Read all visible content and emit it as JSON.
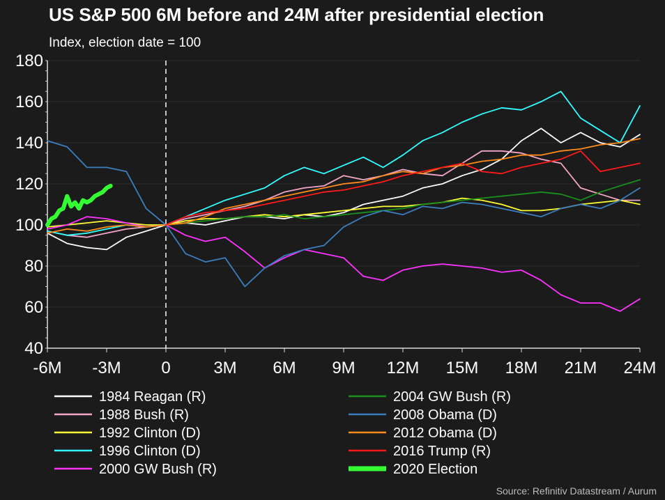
{
  "title": "US S&P 500 6M before and 24M after presidential election",
  "subtitle": "Index, election date = 100",
  "source": "Source: Refinitiv Datastream / Aurum",
  "chart_data": {
    "type": "line",
    "title": "US S&P 500 6M before and 24M after presidential election",
    "subtitle": "Index, election date = 100",
    "xlim": [
      -6,
      24
    ],
    "ylim": [
      40,
      180
    ],
    "x_ticks": [
      -6,
      -3,
      0,
      3,
      6,
      9,
      12,
      15,
      18,
      21,
      24
    ],
    "x_tick_labels": [
      "-6M",
      "-3M",
      "0",
      "3M",
      "6M",
      "9M",
      "12M",
      "15M",
      "18M",
      "21M",
      "24M"
    ],
    "y_ticks": [
      40,
      60,
      80,
      100,
      120,
      140,
      160,
      180
    ],
    "y_tick_labels": [
      "40",
      "60",
      "80",
      "100",
      "120",
      "140",
      "160",
      "180"
    ],
    "grid": true,
    "vline_at": 0,
    "legend_position": "bottom",
    "series": [
      {
        "name": "1984 Reagan (R)",
        "color": "#ffffff",
        "x": [
          -6,
          -5,
          -4,
          -3,
          -2,
          -1,
          0,
          1,
          2,
          3,
          4,
          5,
          6,
          7,
          8,
          9,
          10,
          11,
          12,
          13,
          14,
          15,
          16,
          17,
          18,
          19,
          20,
          21,
          22,
          23,
          24
        ],
        "values": [
          96,
          91,
          89,
          88,
          94,
          97,
          100,
          101,
          100,
          102,
          104,
          104,
          103,
          105,
          104,
          106,
          110,
          112,
          114,
          118,
          120,
          124,
          127,
          132,
          141,
          147,
          140,
          145,
          140,
          138,
          144
        ]
      },
      {
        "name": "1988 Bush (R)",
        "color": "#f4a6c8",
        "x": [
          -6,
          -5,
          -4,
          -3,
          -2,
          -1,
          0,
          1,
          2,
          3,
          4,
          5,
          6,
          7,
          8,
          9,
          10,
          11,
          12,
          13,
          14,
          15,
          16,
          17,
          18,
          19,
          20,
          21,
          22,
          23,
          24
        ],
        "values": [
          97,
          95,
          94,
          96,
          98,
          99,
          100,
          103,
          105,
          107,
          109,
          112,
          116,
          118,
          119,
          124,
          122,
          124,
          127,
          125,
          124,
          130,
          136,
          136,
          135,
          132,
          130,
          118,
          115,
          112,
          112
        ]
      },
      {
        "name": "1992 Clinton (D)",
        "color": "#ffff33",
        "x": [
          -6,
          -5,
          -4,
          -3,
          -2,
          -1,
          0,
          1,
          2,
          3,
          4,
          5,
          6,
          7,
          8,
          9,
          10,
          11,
          12,
          13,
          14,
          15,
          16,
          17,
          18,
          19,
          20,
          21,
          22,
          23,
          24
        ],
        "values": [
          99,
          100,
          101,
          102,
          101,
          100,
          100,
          102,
          103,
          103,
          104,
          105,
          104,
          105,
          106,
          107,
          108,
          109,
          109,
          110,
          111,
          113,
          112,
          110,
          107,
          107,
          108,
          110,
          111,
          112,
          110
        ]
      },
      {
        "name": "1996 Clinton (D)",
        "color": "#33ffff",
        "x": [
          -6,
          -5,
          -4,
          -3,
          -2,
          -1,
          0,
          1,
          2,
          3,
          4,
          5,
          6,
          7,
          8,
          9,
          10,
          11,
          12,
          13,
          14,
          15,
          16,
          17,
          18,
          19,
          20,
          21,
          22,
          23,
          24
        ],
        "values": [
          97,
          95,
          96,
          98,
          100,
          99,
          100,
          104,
          108,
          112,
          115,
          118,
          124,
          128,
          125,
          129,
          133,
          128,
          134,
          141,
          145,
          150,
          154,
          157,
          156,
          160,
          165,
          152,
          146,
          140,
          158
        ]
      },
      {
        "name": "2000 GW Bush (R)",
        "color": "#ff33ff",
        "x": [
          -6,
          -5,
          -4,
          -3,
          -2,
          -1,
          0,
          1,
          2,
          3,
          4,
          5,
          6,
          7,
          8,
          9,
          10,
          11,
          12,
          13,
          14,
          15,
          16,
          17,
          18,
          19,
          20,
          21,
          22,
          23,
          24
        ],
        "values": [
          98,
          100,
          104,
          103,
          101,
          99,
          100,
          95,
          92,
          94,
          87,
          79,
          84,
          88,
          86,
          84,
          75,
          73,
          78,
          80,
          81,
          80,
          79,
          77,
          78,
          73,
          66,
          62,
          62,
          58,
          64
        ]
      },
      {
        "name": "2004 GW Bush (R)",
        "color": "#1a8f1a",
        "x": [
          0,
          1,
          2,
          3,
          4,
          5,
          6,
          7,
          8,
          9,
          10,
          11,
          12,
          13,
          14,
          15,
          16,
          17,
          18,
          19,
          20,
          21,
          22,
          23,
          24
        ],
        "values": [
          100,
          101,
          102,
          103,
          104,
          104,
          105,
          103,
          104,
          105,
          106,
          107,
          108,
          110,
          111,
          112,
          113,
          114,
          115,
          116,
          115,
          112,
          116,
          119,
          122
        ]
      },
      {
        "name": "2008 Obama (D)",
        "color": "#3a7fbf",
        "x": [
          -6,
          -5,
          -4,
          -3,
          -2,
          -1,
          0,
          1,
          2,
          3,
          4,
          5,
          6,
          7,
          8,
          9,
          10,
          11,
          12,
          13,
          14,
          15,
          16,
          17,
          18,
          19,
          20,
          21,
          22,
          23,
          24
        ],
        "values": [
          141,
          138,
          128,
          128,
          126,
          108,
          100,
          86,
          82,
          84,
          70,
          79,
          85,
          88,
          90,
          99,
          104,
          107,
          105,
          109,
          108,
          111,
          110,
          108,
          106,
          104,
          108,
          110,
          108,
          112,
          118
        ]
      },
      {
        "name": "2012 Obama (D)",
        "color": "#ff8c1a",
        "x": [
          -6,
          -5,
          -4,
          -3,
          -2,
          -1,
          0,
          1,
          2,
          3,
          4,
          5,
          6,
          7,
          8,
          9,
          10,
          11,
          12,
          13,
          14,
          15,
          16,
          17,
          18,
          19,
          20,
          21,
          22,
          23,
          24
        ],
        "values": [
          96,
          98,
          97,
          99,
          100,
          99,
          100,
          101,
          104,
          108,
          110,
          112,
          114,
          116,
          118,
          120,
          121,
          124,
          126,
          125,
          128,
          129,
          131,
          132,
          134,
          134,
          136,
          137,
          139,
          140,
          142
        ]
      },
      {
        "name": "2016 Trump (R)",
        "color": "#ff1a1a",
        "x": [
          0,
          1,
          2,
          3,
          4,
          5,
          6,
          7,
          8,
          9,
          10,
          11,
          12,
          13,
          14,
          15,
          16,
          17,
          18,
          19,
          20,
          21,
          22,
          23,
          24
        ],
        "values": [
          100,
          104,
          106,
          107,
          108,
          110,
          112,
          114,
          116,
          117,
          119,
          121,
          124,
          126,
          128,
          130,
          126,
          125,
          128,
          130,
          132,
          136,
          126,
          128,
          130
        ]
      },
      {
        "name": "2020 Election",
        "color": "#33ff33",
        "x": [
          -6,
          -5.8,
          -5.6,
          -5.4,
          -5.2,
          -5,
          -4.8,
          -4.6,
          -4.4,
          -4.2,
          -4,
          -3.8,
          -3.6,
          -3.4,
          -3.2,
          -3,
          -2.8
        ],
        "values": [
          100,
          103,
          104,
          107,
          108,
          114,
          109,
          111,
          108,
          112,
          111,
          112,
          114,
          115,
          116,
          118,
          119
        ]
      }
    ]
  }
}
